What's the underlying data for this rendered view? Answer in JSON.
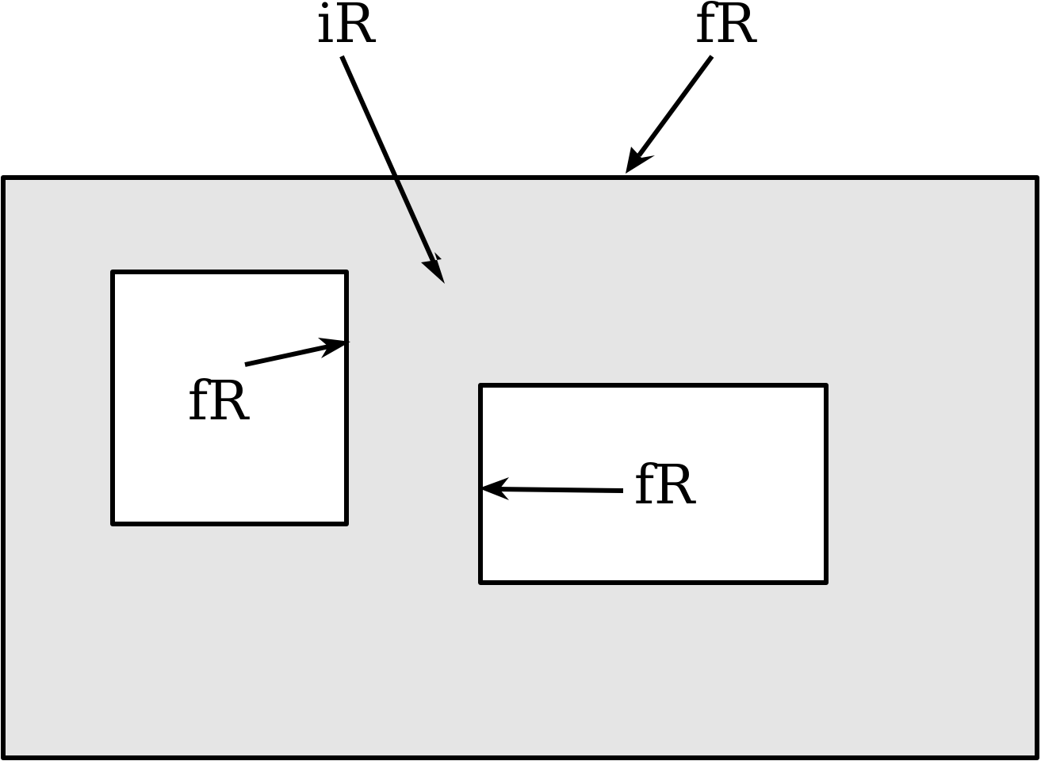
{
  "labels": {
    "top_left": "iR",
    "top_right": "fR",
    "left_box": "fR",
    "right_box": "fR"
  },
  "colors": {
    "outer_region_fill": "#e5e5e5",
    "inner_region_fill": "#ffffff",
    "outline": "#000000"
  }
}
